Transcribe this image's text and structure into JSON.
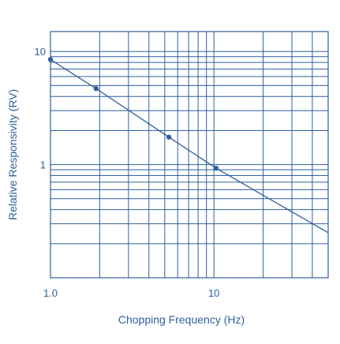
{
  "chart_data": {
    "type": "line",
    "x_scale": "log",
    "y_scale": "log",
    "xlim": [
      1,
      50
    ],
    "ylim": [
      0.1,
      15
    ],
    "grid": true,
    "xlabel": "Chopping Frequency (Hz)",
    "ylabel": "Relative Responsivity (RV)",
    "x_ticks": [
      {
        "value": 1,
        "label": "1.0"
      },
      {
        "value": 10,
        "label": "10"
      }
    ],
    "y_ticks": [
      {
        "value": 10,
        "label": "10"
      },
      {
        "value": 1,
        "label": "1"
      }
    ],
    "series": [
      {
        "x": [
          1,
          1.9,
          5.3,
          10.3,
          50
        ],
        "y": [
          8.5,
          4.7,
          1.75,
          0.93,
          0.25
        ],
        "markers": [
          true,
          true,
          true,
          true,
          false
        ]
      }
    ],
    "colors": {
      "line": "#2f5f9e",
      "grid": "#2f5f9e",
      "text": "#2f5f9e"
    }
  }
}
